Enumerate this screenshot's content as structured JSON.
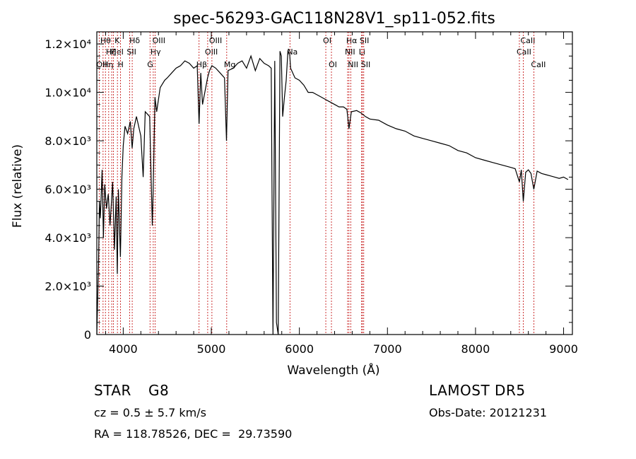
{
  "chart_data": {
    "type": "line",
    "title": "spec-56293-GAC118N28V1_sp11-052.fits",
    "xlabel": "Wavelength (Å)",
    "ylabel": "Flux (relative)",
    "xlim": [
      3700,
      9100
    ],
    "ylim": [
      0,
      12500
    ],
    "x_ticks": [
      4000,
      5000,
      6000,
      7000,
      8000,
      9000
    ],
    "x_tick_labels": [
      "4000",
      "5000",
      "6000",
      "7000",
      "8000",
      "9000"
    ],
    "y_ticks": [
      0,
      2000,
      4000,
      6000,
      8000,
      10000,
      12000
    ],
    "y_tick_labels": [
      "0",
      "2.0×10³",
      "4.0×10³",
      "6.0×10³",
      "8.0×10³",
      "1.0×10⁴",
      "1.2×10⁴"
    ],
    "grid": false,
    "series": [
      {
        "x": [
          3700,
          3720,
          3730,
          3740,
          3760,
          3775,
          3790,
          3810,
          3830,
          3850,
          3880,
          3900,
          3920,
          3933,
          3945,
          3968,
          3985,
          4000,
          4020,
          4050,
          4080,
          4101,
          4120,
          4150,
          4200,
          4226,
          4250,
          4300,
          4330,
          4340,
          4360,
          4380,
          4420,
          4470,
          4500,
          4550,
          4600,
          4650,
          4700,
          4750,
          4800,
          4840,
          4861,
          4880,
          4900,
          4957,
          4980,
          5007,
          5050,
          5100,
          5150,
          5172,
          5190,
          5250,
          5300,
          5350,
          5400,
          5450,
          5500,
          5550,
          5600,
          5650,
          5680,
          5700,
          5720,
          5740,
          5760,
          5780,
          5795,
          5810,
          5830,
          5850,
          5870,
          5890,
          5900,
          5950,
          6000,
          6050,
          6100,
          6150,
          6200,
          6250,
          6300,
          6350,
          6400,
          6450,
          6500,
          6540,
          6563,
          6590,
          6650,
          6700,
          6750,
          6800,
          6900,
          7000,
          7100,
          7200,
          7300,
          7400,
          7500,
          7600,
          7700,
          7800,
          7900,
          8000,
          8100,
          8200,
          8300,
          8400,
          8450,
          8498,
          8520,
          8542,
          8570,
          8600,
          8630,
          8662,
          8700,
          8750,
          8800,
          8850,
          8900,
          8950,
          9000,
          9050
        ],
        "y": [
          0,
          3000,
          5500,
          4800,
          6800,
          4000,
          6200,
          5200,
          5800,
          4500,
          6300,
          3500,
          5700,
          2500,
          6000,
          3200,
          6500,
          7800,
          8600,
          8300,
          8800,
          7700,
          8500,
          9000,
          8200,
          6500,
          9200,
          9000,
          4500,
          6000,
          9800,
          9200,
          10200,
          10500,
          10600,
          10800,
          11000,
          11100,
          11300,
          11200,
          11000,
          11100,
          8700,
          10800,
          9500,
          10600,
          10900,
          11100,
          11000,
          10800,
          10600,
          8000,
          10900,
          11000,
          11200,
          11300,
          11000,
          11500,
          10900,
          11400,
          11200,
          11100,
          11000,
          0,
          11300,
          500,
          0,
          11700,
          11500,
          9000,
          9800,
          10500,
          11700,
          11600,
          11000,
          10600,
          10500,
          10300,
          10000,
          10000,
          9900,
          9800,
          9700,
          9600,
          9500,
          9400,
          9400,
          9300,
          8500,
          9200,
          9250,
          9150,
          9000,
          8900,
          8850,
          8650,
          8500,
          8400,
          8200,
          8100,
          8000,
          7900,
          7800,
          7600,
          7500,
          7300,
          7200,
          7100,
          7000,
          6900,
          6850,
          6300,
          6800,
          5500,
          6700,
          6800,
          6650,
          6000,
          6750,
          6650,
          6600,
          6550,
          6500,
          6450,
          6500,
          6400
        ]
      }
    ],
    "line_markers": [
      {
        "x": 3727,
        "label": "OII",
        "row": 3
      },
      {
        "x": 3771,
        "label": "Hθ",
        "row": 1
      },
      {
        "x": 3798,
        "label": "Hη",
        "row": 3
      },
      {
        "x": 3835,
        "label": "Hζ",
        "row": 2
      },
      {
        "x": 3869,
        "label": "",
        "row": 1
      },
      {
        "x": 3889,
        "label": "HeI",
        "row": 2
      },
      {
        "x": 3934,
        "label": "K",
        "row": 1
      },
      {
        "x": 3969,
        "label": "H",
        "row": 3
      },
      {
        "x": 4072,
        "label": "SII",
        "row": 2
      },
      {
        "x": 4102,
        "label": "Hδ",
        "row": 1
      },
      {
        "x": 4304,
        "label": "G",
        "row": 3
      },
      {
        "x": 4341,
        "label": "Hγ",
        "row": 2
      },
      {
        "x": 4363,
        "label": "OIII",
        "row": 1
      },
      {
        "x": 4861,
        "label": "Hβ",
        "row": 3
      },
      {
        "x": 4959,
        "label": "OIII",
        "row": 2
      },
      {
        "x": 5007,
        "label": "OIII",
        "row": 1
      },
      {
        "x": 5175,
        "label": "Mg",
        "row": 3
      },
      {
        "x": 5893,
        "label": "Na",
        "row": 2
      },
      {
        "x": 6300,
        "label": "OI",
        "row": 1
      },
      {
        "x": 6364,
        "label": "OI",
        "row": 3
      },
      {
        "x": 6548,
        "label": "NII",
        "row": 2
      },
      {
        "x": 6563,
        "label": "Hα",
        "row": 1
      },
      {
        "x": 6583,
        "label": "NII",
        "row": 3
      },
      {
        "x": 6707,
        "label": "Li",
        "row": 2
      },
      {
        "x": 6716,
        "label": "SII",
        "row": 1
      },
      {
        "x": 6731,
        "label": "SII",
        "row": 3
      },
      {
        "x": 8498,
        "label": "CaII",
        "row": 2
      },
      {
        "x": 8542,
        "label": "CaII",
        "row": 1
      },
      {
        "x": 8662,
        "label": "CaII",
        "row": 3
      }
    ]
  },
  "info": {
    "class_label": "STAR",
    "subclass": "G8",
    "redshift_line": "cz = 0.5 ± 5.7 km/s",
    "coords_line": "RA = 118.78526, DEC =  29.73590",
    "survey": "LAMOST DR5",
    "obs_date": "Obs-Date: 20121231"
  }
}
